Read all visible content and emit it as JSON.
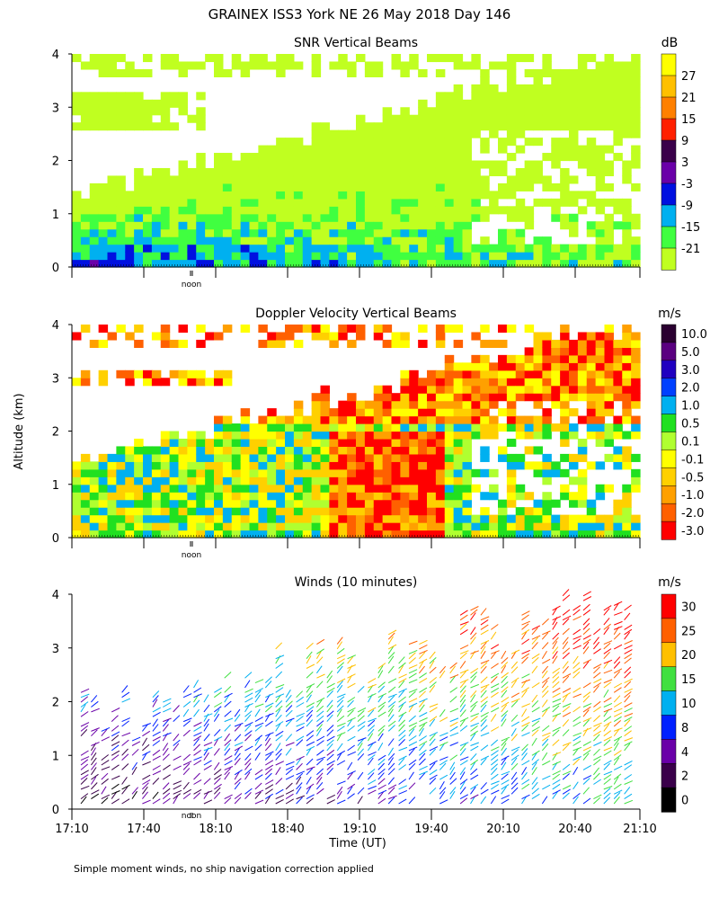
{
  "figure_title": "GRAINEX ISS3 York NE  26 May 2018 Day 146",
  "ylabel": "Altitude (km)",
  "xlabel": "Time (UT)",
  "footnote": "Simple moment winds, no ship navigation correction applied",
  "noon_label": "noon",
  "chart_data": [
    {
      "type": "heatmap",
      "title": "SNR Vertical Beams",
      "unit": "dB",
      "ylim": [
        0,
        4
      ],
      "yticks": [
        "0",
        "1",
        "2",
        "3",
        "4"
      ],
      "colorbar": {
        "labels": [
          "27",
          "21",
          "15",
          "9",
          "3",
          "-3",
          "-9",
          "-15",
          "-21"
        ],
        "colors": [
          "#ffff00",
          "#ffc000",
          "#ff8000",
          "#ff2000",
          "#3a004a",
          "#6a00a8",
          "#0010e0",
          "#00b0f0",
          "#40ff40",
          "#c0ff20"
        ]
      }
    },
    {
      "type": "heatmap",
      "title": "Doppler Velocity Vertical Beams",
      "unit": "m/s",
      "ylim": [
        0,
        4
      ],
      "yticks": [
        "0",
        "1",
        "2",
        "3",
        "4"
      ],
      "colorbar": {
        "labels": [
          "10.0",
          "5.0",
          "3.0",
          "2.0",
          "1.0",
          "0.5",
          "0.1",
          "-0.1",
          "-0.5",
          "-1.0",
          "-2.0",
          "-3.0"
        ],
        "colors": [
          "#2a0030",
          "#5a0080",
          "#2000c0",
          "#0040ff",
          "#00b0f0",
          "#20e020",
          "#b0ff30",
          "#ffff00",
          "#ffd000",
          "#ffa000",
          "#ff6000",
          "#ff0000"
        ]
      }
    },
    {
      "type": "scatter",
      "title": "Winds (10 minutes)",
      "unit": "m/s",
      "ylim": [
        0,
        4
      ],
      "yticks": [
        "0",
        "1",
        "2",
        "3",
        "4"
      ],
      "xticks": [
        "17:10",
        "17:40",
        "18:10",
        "18:40",
        "19:10",
        "19:40",
        "20:10",
        "20:40",
        "21:10"
      ],
      "colorbar": {
        "labels": [
          "30",
          "25",
          "20",
          "15",
          "10",
          "8",
          "4",
          "2",
          "0"
        ],
        "colors": [
          "#ff0000",
          "#ff6000",
          "#ffc000",
          "#40e040",
          "#00b0f0",
          "#0020ff",
          "#6a00a8",
          "#3a004a",
          "#000000"
        ]
      }
    }
  ]
}
